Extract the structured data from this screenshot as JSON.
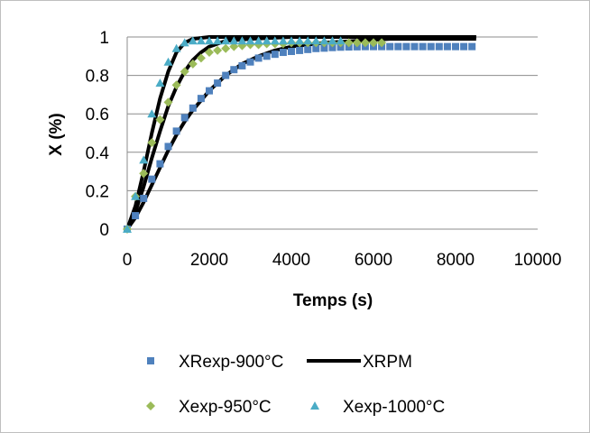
{
  "chart_data": {
    "type": "scatter",
    "xlabel": "Temps (s)",
    "ylabel": "X (%)",
    "xlim": [
      0,
      10000
    ],
    "ylim": [
      0,
      1
    ],
    "x_ticks": [
      "0",
      "2000",
      "4000",
      "6000",
      "8000",
      "10000"
    ],
    "y_ticks": [
      "0",
      "0.2",
      "0.4",
      "0.6",
      "0.8",
      "1"
    ],
    "grid": "horizontal",
    "legend_position": "bottom",
    "series": [
      {
        "name": "XRexp-900°C",
        "type": "scatter",
        "marker": "square",
        "color": "#4f81bd",
        "points": [
          [
            0,
            0
          ],
          [
            200,
            0.07
          ],
          [
            400,
            0.16
          ],
          [
            600,
            0.26
          ],
          [
            800,
            0.34
          ],
          [
            1000,
            0.43
          ],
          [
            1200,
            0.51
          ],
          [
            1400,
            0.58
          ],
          [
            1600,
            0.63
          ],
          [
            1800,
            0.68
          ],
          [
            2000,
            0.72
          ],
          [
            2200,
            0.76
          ],
          [
            2400,
            0.8
          ],
          [
            2600,
            0.83
          ],
          [
            2800,
            0.85
          ],
          [
            3000,
            0.87
          ],
          [
            3200,
            0.89
          ],
          [
            3400,
            0.9
          ],
          [
            3600,
            0.91
          ],
          [
            3800,
            0.92
          ],
          [
            4000,
            0.925
          ],
          [
            4200,
            0.93
          ],
          [
            4400,
            0.935
          ],
          [
            4600,
            0.94
          ],
          [
            4800,
            0.942
          ],
          [
            5000,
            0.945
          ],
          [
            5200,
            0.947
          ],
          [
            5400,
            0.948
          ],
          [
            5600,
            0.949
          ],
          [
            5800,
            0.95
          ],
          [
            6000,
            0.95
          ],
          [
            6200,
            0.95
          ],
          [
            6400,
            0.95
          ],
          [
            6600,
            0.95
          ],
          [
            6800,
            0.95
          ],
          [
            7000,
            0.95
          ],
          [
            7200,
            0.95
          ],
          [
            7400,
            0.95
          ],
          [
            7600,
            0.95
          ],
          [
            7800,
            0.95
          ],
          [
            8000,
            0.95
          ],
          [
            8200,
            0.95
          ],
          [
            8400,
            0.95
          ]
        ]
      },
      {
        "name": "XRPM",
        "type": "line",
        "color": "#000000",
        "lines": [
          [
            [
              0,
              0
            ],
            [
              200,
              0.12
            ],
            [
              400,
              0.3
            ],
            [
              600,
              0.5
            ],
            [
              800,
              0.68
            ],
            [
              1000,
              0.82
            ],
            [
              1200,
              0.92
            ],
            [
              1400,
              0.97
            ],
            [
              1600,
              0.99
            ],
            [
              2000,
              1.0
            ],
            [
              4000,
              1.0
            ],
            [
              6000,
              1.0
            ],
            [
              8500,
              1.0
            ]
          ],
          [
            [
              0,
              0
            ],
            [
              200,
              0.09
            ],
            [
              400,
              0.22
            ],
            [
              600,
              0.37
            ],
            [
              800,
              0.51
            ],
            [
              1000,
              0.64
            ],
            [
              1200,
              0.74
            ],
            [
              1400,
              0.82
            ],
            [
              1600,
              0.88
            ],
            [
              1800,
              0.92
            ],
            [
              2000,
              0.95
            ],
            [
              2400,
              0.98
            ],
            [
              3000,
              0.99
            ],
            [
              4000,
              1.0
            ],
            [
              6000,
              1.0
            ],
            [
              8500,
              1.0
            ]
          ],
          [
            [
              0,
              0
            ],
            [
              200,
              0.06
            ],
            [
              400,
              0.14
            ],
            [
              600,
              0.23
            ],
            [
              800,
              0.32
            ],
            [
              1000,
              0.41
            ],
            [
              1200,
              0.49
            ],
            [
              1400,
              0.56
            ],
            [
              1600,
              0.62
            ],
            [
              1800,
              0.67
            ],
            [
              2000,
              0.72
            ],
            [
              2400,
              0.8
            ],
            [
              2800,
              0.86
            ],
            [
              3200,
              0.9
            ],
            [
              3600,
              0.93
            ],
            [
              4000,
              0.95
            ],
            [
              4800,
              0.97
            ],
            [
              5600,
              0.98
            ],
            [
              6400,
              0.99
            ],
            [
              8500,
              0.99
            ]
          ]
        ]
      },
      {
        "name": "Xexp-950°C",
        "type": "scatter",
        "marker": "diamond",
        "color": "#9bbb59",
        "points": [
          [
            0,
            0
          ],
          [
            200,
            0.17
          ],
          [
            400,
            0.29
          ],
          [
            600,
            0.45
          ],
          [
            800,
            0.57
          ],
          [
            1000,
            0.66
          ],
          [
            1200,
            0.75
          ],
          [
            1400,
            0.82
          ],
          [
            1600,
            0.86
          ],
          [
            1800,
            0.89
          ],
          [
            2000,
            0.92
          ],
          [
            2200,
            0.93
          ],
          [
            2400,
            0.94
          ],
          [
            2600,
            0.95
          ],
          [
            2800,
            0.955
          ],
          [
            3000,
            0.96
          ],
          [
            3200,
            0.96
          ],
          [
            3400,
            0.965
          ],
          [
            3600,
            0.965
          ],
          [
            3800,
            0.965
          ],
          [
            4000,
            0.97
          ],
          [
            4200,
            0.97
          ],
          [
            4400,
            0.97
          ],
          [
            4600,
            0.97
          ],
          [
            4800,
            0.97
          ],
          [
            5000,
            0.97
          ],
          [
            5200,
            0.97
          ],
          [
            5400,
            0.97
          ],
          [
            5600,
            0.97
          ],
          [
            5800,
            0.97
          ],
          [
            6000,
            0.97
          ],
          [
            6200,
            0.97
          ]
        ]
      },
      {
        "name": "Xexp-1000°C",
        "type": "scatter",
        "marker": "triangle",
        "color": "#4bacc6",
        "points": [
          [
            0,
            0
          ],
          [
            200,
            0.17
          ],
          [
            400,
            0.36
          ],
          [
            600,
            0.6
          ],
          [
            800,
            0.76
          ],
          [
            1000,
            0.87
          ],
          [
            1200,
            0.94
          ],
          [
            1400,
            0.97
          ],
          [
            1600,
            0.98
          ],
          [
            1800,
            0.98
          ],
          [
            2000,
            0.98
          ],
          [
            2200,
            0.98
          ],
          [
            2400,
            0.98
          ],
          [
            2600,
            0.98
          ],
          [
            2800,
            0.98
          ],
          [
            3000,
            0.98
          ],
          [
            3200,
            0.98
          ],
          [
            3400,
            0.98
          ],
          [
            3600,
            0.98
          ],
          [
            3800,
            0.98
          ],
          [
            4000,
            0.98
          ],
          [
            4200,
            0.98
          ],
          [
            4400,
            0.98
          ],
          [
            4600,
            0.98
          ],
          [
            4800,
            0.98
          ],
          [
            5000,
            0.98
          ],
          [
            5200,
            0.98
          ]
        ]
      }
    ]
  }
}
